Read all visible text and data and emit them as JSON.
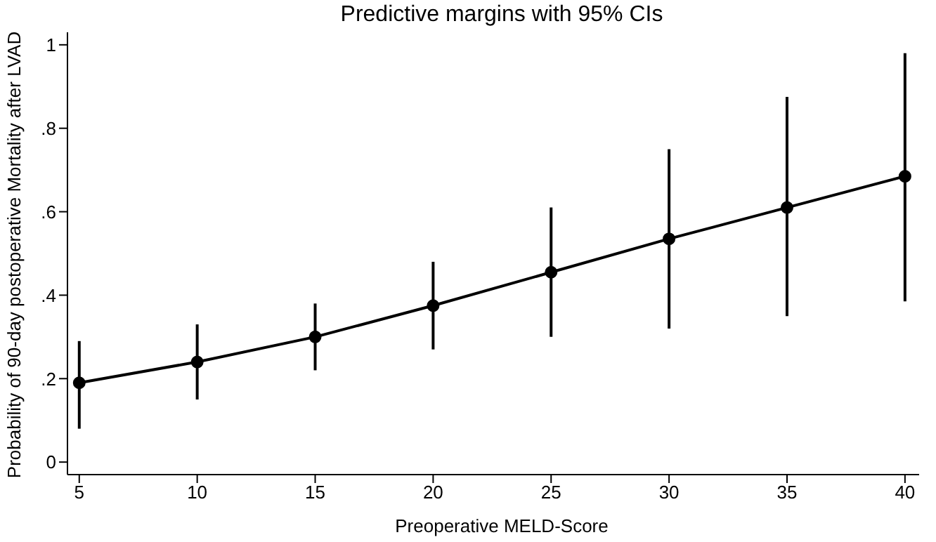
{
  "chart_data": {
    "type": "line",
    "title": "Predictive margins with 95% CIs",
    "xlabel": "Preoperative MELD-Score",
    "ylabel": "Probability of 90-day postoperative Mortality after LVAD",
    "x": [
      5,
      10,
      15,
      20,
      25,
      30,
      35,
      40
    ],
    "series": [
      {
        "color": "#000000",
        "values": [
          0.19,
          0.24,
          0.3,
          0.375,
          0.455,
          0.535,
          0.61,
          0.685
        ],
        "errors": [
          [
            0.08,
            0.29
          ],
          [
            0.15,
            0.33
          ],
          [
            0.22,
            0.38
          ],
          [
            0.27,
            0.48
          ],
          [
            0.3,
            0.61
          ],
          [
            0.32,
            0.75
          ],
          [
            0.35,
            0.875
          ],
          [
            0.385,
            0.98
          ]
        ]
      }
    ],
    "xlim": [
      4.5,
      40.6
    ],
    "xticks": [
      5,
      10,
      15,
      20,
      25,
      30,
      35,
      40
    ],
    "ylim": [
      -0.03,
      1.03
    ],
    "yticks": [
      {
        "value": 0,
        "label": "0"
      },
      {
        "value": 0.2,
        "label": ".2"
      },
      {
        "value": 0.4,
        "label": ".4"
      },
      {
        "value": 0.6,
        "label": ".6"
      },
      {
        "value": 0.8,
        "label": ".8"
      },
      {
        "value": 1,
        "label": "1"
      }
    ],
    "grid": false,
    "legend": false,
    "marker": "circle",
    "line_style": "solid"
  }
}
